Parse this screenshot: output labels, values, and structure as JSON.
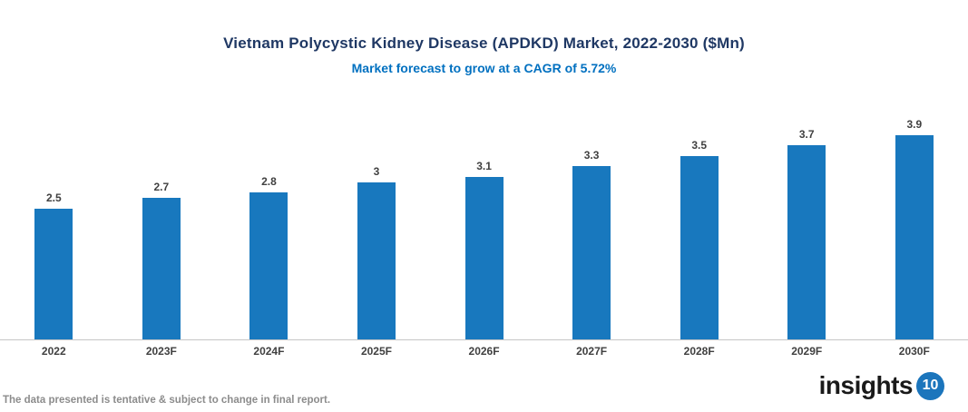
{
  "header": {
    "title": "Vietnam Polycystic Kidney Disease (APDKD) Market, 2022-2030 ($Mn)",
    "subtitle": "Market forecast to grow at a CAGR of 5.72%"
  },
  "chart_data": {
    "type": "bar",
    "title": "Vietnam Polycystic Kidney Disease (APDKD) Market, 2022-2030 ($Mn)",
    "subtitle": "Market forecast to grow at a CAGR of 5.72%",
    "categories": [
      "2022",
      "2023F",
      "2024F",
      "2025F",
      "2026F",
      "2027F",
      "2028F",
      "2029F",
      "2030F"
    ],
    "values": [
      2.5,
      2.7,
      2.8,
      3,
      3.1,
      3.3,
      3.5,
      3.7,
      3.9
    ],
    "value_labels": [
      "2.5",
      "2.7",
      "2.8",
      "3",
      "3.1",
      "3.3",
      "3.5",
      "3.7",
      "3.9"
    ],
    "xlabel": "",
    "ylabel": "",
    "ylim": [
      0,
      4.5
    ],
    "grid": false,
    "legend": "none",
    "bar_color": "#1878BE",
    "data_label_color": "#404040",
    "axis_line_color": "#C6C6C6"
  },
  "footer": {
    "note": "The data presented is tentative & subject to change in final report."
  },
  "logo": {
    "text": "insights",
    "badge": "10",
    "badge_color": "#1B75BC",
    "text_color": "#1A1A1A"
  },
  "colors": {
    "title": "#1F3864",
    "subtitle": "#0070C0"
  }
}
